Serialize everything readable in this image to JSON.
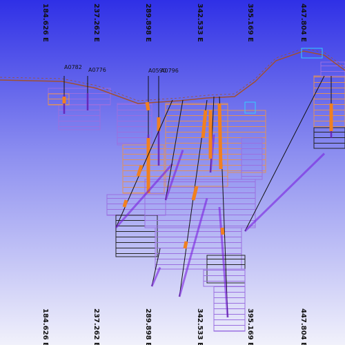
{
  "eastings_top": [
    "184.626 E",
    "237.262 E",
    "289.898 E",
    "342.533 E",
    "395.169 E",
    "447.804 E"
  ],
  "eastings_bottom": [
    "184.626 E",
    "237.262 E",
    "289.898 E",
    "342.533 E",
    "395.169 E",
    "447.804 E"
  ],
  "drillholes": [
    {
      "label": "A0782"
    },
    {
      "label": "A0776"
    },
    {
      "label": "A0590"
    },
    {
      "label": "A0796"
    }
  ]
}
